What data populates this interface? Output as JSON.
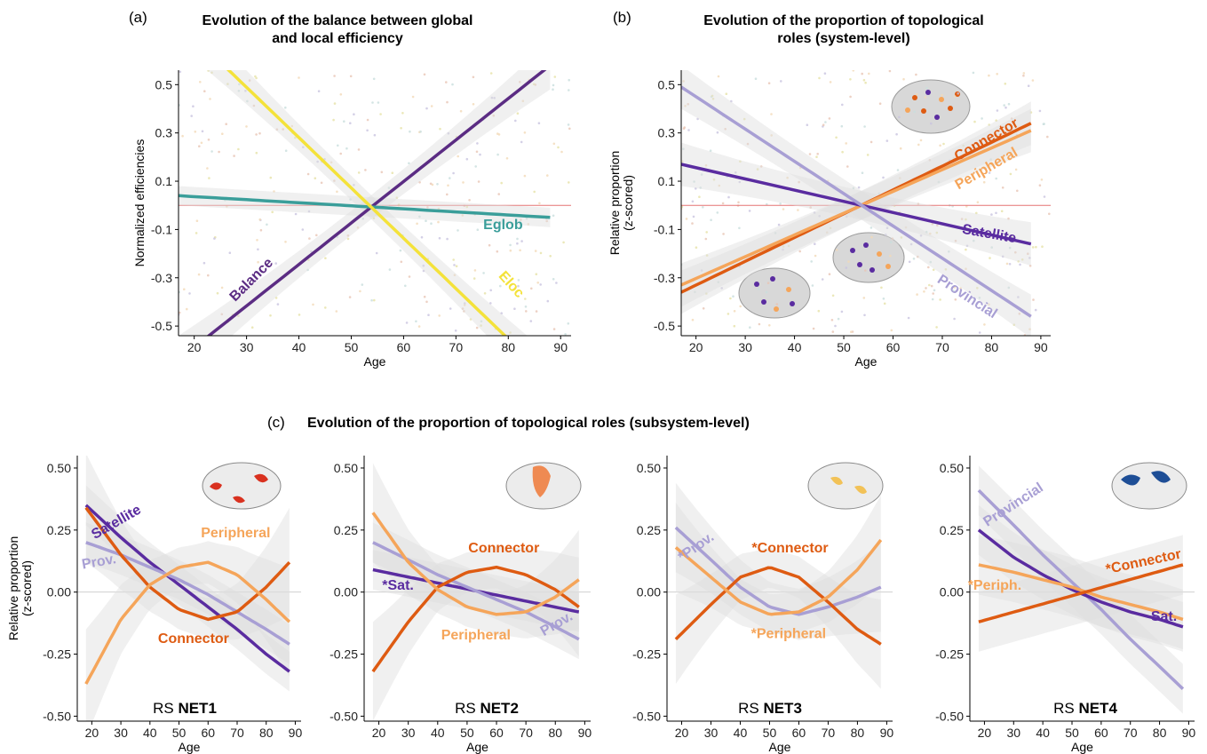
{
  "figure": {
    "panel_a_label": "(a)",
    "panel_b_label": "(b)",
    "panel_c_label": "(c)",
    "panel_c_title": "Evolution of the proportion of topological roles (subsystem-level)"
  },
  "colors": {
    "balance": "#5b2c83",
    "eglob": "#3a9e9a",
    "eloc": "#f4e23a",
    "connector": "#de5b12",
    "peripheral": "#f5a55a",
    "satellite": "#5a2ca0",
    "provincial": "#a89fd4",
    "zero_line": "#e57373",
    "band": "#dddddd"
  },
  "chart_data": [
    {
      "id": "a",
      "type": "line",
      "title": [
        "Evolution of the balance between global",
        "and local efficiency"
      ],
      "xlabel": "Age",
      "ylabel": "Normalized efficiencies",
      "xlim": [
        17,
        92
      ],
      "ylim": [
        -0.54,
        0.56
      ],
      "xticks": [
        20,
        30,
        40,
        50,
        60,
        70,
        80,
        90
      ],
      "yticks": [
        -0.5,
        -0.3,
        -0.1,
        0.1,
        0.3,
        0.5
      ],
      "ytick_labels": [
        "-0.5",
        "-0.3",
        "-0.1",
        "0.1",
        "0.3",
        "0.5"
      ],
      "reference_line": 0,
      "series": [
        {
          "name": "Balance",
          "color_key": "balance",
          "x": [
            17,
            88
          ],
          "y": [
            -0.64,
            0.58
          ],
          "band": [
            0.05,
            0.1
          ]
        },
        {
          "name": "Eglob",
          "color_key": "eglob",
          "x": [
            17,
            88
          ],
          "y": [
            0.04,
            -0.05
          ],
          "band": [
            0.04,
            0.04
          ]
        },
        {
          "name": "Eloc",
          "color_key": "eloc",
          "x": [
            17,
            88
          ],
          "y": [
            0.76,
            -0.72
          ],
          "band": [
            0.05,
            0.1
          ]
        }
      ],
      "annotations": [
        {
          "text": "Balance",
          "color_key": "balance",
          "x": 31,
          "y": -0.31,
          "angle": -45
        },
        {
          "text": "Eglob",
          "color_key": "eglob",
          "x": 79,
          "y": -0.083,
          "angle": 0
        },
        {
          "text": "Eloc",
          "color_key": "eloc",
          "x": 80.5,
          "y": -0.33,
          "angle": 48
        }
      ]
    },
    {
      "id": "b",
      "type": "line",
      "title": [
        "Evolution of the proportion of topological",
        "roles (system-level)"
      ],
      "xlabel": "Age",
      "ylabel": "Relative proportion",
      "ylabel2": "(z-scored)",
      "xlim": [
        17,
        92
      ],
      "ylim": [
        -0.54,
        0.56
      ],
      "xticks": [
        20,
        30,
        40,
        50,
        60,
        70,
        80,
        90
      ],
      "yticks": [
        -0.5,
        -0.3,
        -0.1,
        0.1,
        0.3,
        0.5
      ],
      "ytick_labels": [
        "-0.5",
        "-0.3",
        "-0.1",
        "0.1",
        "0.3",
        "0.5"
      ],
      "reference_line": 0,
      "series": [
        {
          "name": "Connector",
          "color_key": "connector",
          "x": [
            17,
            88
          ],
          "y": [
            -0.36,
            0.34
          ],
          "band": [
            0.06,
            0.09
          ]
        },
        {
          "name": "Peripheral",
          "color_key": "peripheral",
          "x": [
            17,
            88
          ],
          "y": [
            -0.33,
            0.31
          ],
          "band": [
            0.06,
            0.09
          ]
        },
        {
          "name": "Satellite",
          "color_key": "satellite",
          "x": [
            17,
            88
          ],
          "y": [
            0.17,
            -0.16
          ],
          "band": [
            0.06,
            0.09
          ]
        },
        {
          "name": "Provincial",
          "color_key": "provincial",
          "x": [
            17,
            88
          ],
          "y": [
            0.49,
            -0.46
          ],
          "band": [
            0.06,
            0.09
          ]
        }
      ],
      "annotations": [
        {
          "text": "Connector",
          "color_key": "connector",
          "x": 79,
          "y": 0.27,
          "angle": -30
        },
        {
          "text": "Peripheral",
          "color_key": "peripheral",
          "x": 79,
          "y": 0.15,
          "angle": -30
        },
        {
          "text": "Satellite",
          "color_key": "satellite",
          "x": 79.5,
          "y": -0.12,
          "angle": 10
        },
        {
          "text": "Provincial",
          "color_key": "provincial",
          "x": 75,
          "y": -0.38,
          "angle": 33
        }
      ]
    },
    {
      "id": "c1",
      "type": "line",
      "subtitle_prefix": "RS ",
      "subtitle_bold": "NET1",
      "xlabel": "Age",
      "ylabel": "Relative proportion",
      "ylabel2": "(z-scored)",
      "xlim": [
        15,
        92
      ],
      "ylim": [
        -0.52,
        0.55
      ],
      "xticks": [
        20,
        30,
        40,
        50,
        60,
        70,
        80,
        90
      ],
      "yticks": [
        -0.5,
        -0.25,
        0,
        0.25,
        0.5
      ],
      "ytick_labels": [
        "-0.50",
        "-0.25",
        "0.00",
        "0.25",
        "0.50"
      ],
      "series": [
        {
          "name": "Satellite",
          "color_key": "satellite",
          "x": [
            18,
            30,
            40,
            50,
            60,
            70,
            80,
            88
          ],
          "y": [
            0.35,
            0.22,
            0.12,
            0.03,
            -0.06,
            -0.15,
            -0.25,
            -0.32
          ],
          "band": [
            0.08,
            0.08
          ]
        },
        {
          "name": "Prov.",
          "color_key": "provincial",
          "x": [
            18,
            30,
            40,
            50,
            60,
            70,
            80,
            88
          ],
          "y": [
            0.2,
            0.15,
            0.1,
            0.05,
            -0.01,
            -0.08,
            -0.15,
            -0.21
          ],
          "band": [
            0.08,
            0.08
          ]
        },
        {
          "name": "Connector",
          "color_key": "connector",
          "x": [
            18,
            30,
            40,
            50,
            60,
            70,
            80,
            88
          ],
          "y": [
            0.34,
            0.15,
            0.02,
            -0.07,
            -0.11,
            -0.08,
            0.02,
            0.12
          ],
          "band": [
            0.08,
            0.22
          ]
        },
        {
          "name": "Peripheral",
          "color_key": "peripheral",
          "x": [
            18,
            30,
            40,
            50,
            60,
            70,
            80,
            88
          ],
          "y": [
            -0.37,
            -0.11,
            0.03,
            0.1,
            0.12,
            0.07,
            -0.03,
            -0.12
          ],
          "band": [
            0.08,
            0.22
          ]
        }
      ],
      "annotations": [
        {
          "text": "Satellite",
          "color_key": "satellite",
          "x": 28.5,
          "y": 0.28,
          "angle": -30
        },
        {
          "text": "Prov.",
          "color_key": "provincial",
          "x": 22.5,
          "y": 0.12,
          "angle": -10
        },
        {
          "text": "Peripheral",
          "color_key": "peripheral",
          "x": 69.5,
          "y": 0.235,
          "angle": 0
        },
        {
          "text": "Connector",
          "color_key": "connector",
          "x": 55,
          "y": -0.19,
          "angle": 0
        }
      ]
    },
    {
      "id": "c2",
      "type": "line",
      "subtitle_prefix": "RS ",
      "subtitle_bold": "NET2",
      "xlabel": "Age",
      "xlim": [
        15,
        92
      ],
      "ylim": [
        -0.52,
        0.55
      ],
      "xticks": [
        20,
        30,
        40,
        50,
        60,
        70,
        80,
        90
      ],
      "yticks": [
        -0.5,
        -0.25,
        0,
        0.25,
        0.5
      ],
      "ytick_labels": [
        "-0.50",
        "-0.25",
        "0.00",
        "0.25",
        "0.50"
      ],
      "series": [
        {
          "name": "*Sat.",
          "color_key": "satellite",
          "x": [
            18,
            88
          ],
          "y": [
            0.09,
            -0.08
          ],
          "band": [
            0.08,
            0.08
          ]
        },
        {
          "name": "Prov.",
          "color_key": "provincial",
          "x": [
            18,
            30,
            40,
            50,
            60,
            70,
            80,
            88
          ],
          "y": [
            0.2,
            0.13,
            0.07,
            0.02,
            -0.03,
            -0.08,
            -0.14,
            -0.19
          ],
          "band": [
            0.08,
            0.08
          ]
        },
        {
          "name": "Connector",
          "color_key": "connector",
          "x": [
            18,
            30,
            40,
            50,
            60,
            70,
            80,
            88
          ],
          "y": [
            -0.32,
            -0.12,
            0.02,
            0.08,
            0.1,
            0.07,
            0.01,
            -0.06
          ],
          "band": [
            0.08,
            0.2
          ]
        },
        {
          "name": "Peripheral",
          "color_key": "peripheral",
          "x": [
            18,
            30,
            40,
            50,
            60,
            70,
            80,
            88
          ],
          "y": [
            0.32,
            0.12,
            0.01,
            -0.06,
            -0.09,
            -0.08,
            -0.02,
            0.05
          ],
          "band": [
            0.08,
            0.2
          ]
        }
      ],
      "annotations": [
        {
          "text": "*Sat.",
          "color_key": "satellite",
          "x": 26.5,
          "y": 0.025,
          "angle": 0
        },
        {
          "text": "Connector",
          "color_key": "connector",
          "x": 62.5,
          "y": 0.175,
          "angle": 0
        },
        {
          "text": "Peripheral",
          "color_key": "peripheral",
          "x": 53,
          "y": -0.175,
          "angle": 0
        },
        {
          "text": "Prov.",
          "color_key": "provincial",
          "x": 80.5,
          "y": -0.13,
          "angle": -30
        }
      ]
    },
    {
      "id": "c3",
      "type": "line",
      "subtitle_prefix": "RS ",
      "subtitle_bold": "NET3",
      "xlabel": "Age",
      "xlim": [
        15,
        92
      ],
      "ylim": [
        -0.52,
        0.55
      ],
      "xticks": [
        20,
        30,
        40,
        50,
        60,
        70,
        80,
        90
      ],
      "yticks": [
        -0.5,
        -0.25,
        0,
        0.25,
        0.5
      ],
      "ytick_labels": [
        "-0.50",
        "-0.25",
        "0.00",
        "0.25",
        "0.50"
      ],
      "series": [
        {
          "name": "*Prov.",
          "color_key": "provincial",
          "x": [
            18,
            30,
            40,
            50,
            60,
            70,
            80,
            88
          ],
          "y": [
            0.26,
            0.13,
            0.02,
            -0.06,
            -0.09,
            -0.06,
            -0.02,
            0.02
          ],
          "band": [
            0.1,
            0.18
          ]
        },
        {
          "name": "*Connector",
          "color_key": "connector",
          "x": [
            18,
            30,
            40,
            50,
            60,
            70,
            80,
            88
          ],
          "y": [
            -0.19,
            -0.05,
            0.06,
            0.1,
            0.06,
            -0.04,
            -0.15,
            -0.21
          ],
          "band": [
            0.08,
            0.18
          ]
        },
        {
          "name": "*Peripheral",
          "color_key": "peripheral",
          "x": [
            18,
            30,
            40,
            50,
            60,
            70,
            80,
            88
          ],
          "y": [
            0.18,
            0.06,
            -0.04,
            -0.09,
            -0.08,
            -0.02,
            0.09,
            0.21
          ],
          "band": [
            0.08,
            0.18
          ]
        }
      ],
      "annotations": [
        {
          "text": "*Prov.",
          "color_key": "provincial",
          "x": 25,
          "y": 0.18,
          "angle": -35
        },
        {
          "text": "*Connector",
          "color_key": "connector",
          "x": 57,
          "y": 0.175,
          "angle": 0
        },
        {
          "text": "*Peripheral",
          "color_key": "peripheral",
          "x": 56.5,
          "y": -0.17,
          "angle": 0
        }
      ]
    },
    {
      "id": "c4",
      "type": "line",
      "subtitle_prefix": "RS ",
      "subtitle_bold": "NET4",
      "xlabel": "Age",
      "xlim": [
        15,
        92
      ],
      "ylim": [
        -0.52,
        0.55
      ],
      "xticks": [
        20,
        30,
        40,
        50,
        60,
        70,
        80,
        90
      ],
      "yticks": [
        -0.5,
        -0.25,
        0,
        0.25,
        0.5
      ],
      "ytick_labels": [
        "-0.50",
        "-0.25",
        "0.00",
        "0.25",
        "0.50"
      ],
      "series": [
        {
          "name": "Provincial",
          "color_key": "provincial",
          "x": [
            18,
            30,
            40,
            50,
            60,
            70,
            80,
            88
          ],
          "y": [
            0.41,
            0.27,
            0.15,
            0.04,
            -0.07,
            -0.19,
            -0.3,
            -0.39
          ],
          "band": [
            0.1,
            0.1
          ]
        },
        {
          "name": "Sat.",
          "color_key": "satellite",
          "x": [
            18,
            30,
            40,
            50,
            60,
            70,
            80,
            88
          ],
          "y": [
            0.25,
            0.14,
            0.07,
            0.01,
            -0.04,
            -0.08,
            -0.11,
            -0.14
          ],
          "band": [
            0.1,
            0.1
          ]
        },
        {
          "name": "*Periph.",
          "color_key": "peripheral",
          "x": [
            18,
            30,
            40,
            50,
            60,
            70,
            80,
            88
          ],
          "y": [
            0.11,
            0.08,
            0.05,
            0.02,
            -0.02,
            -0.05,
            -0.08,
            -0.11
          ],
          "band": [
            0.12,
            0.12
          ]
        },
        {
          "name": "*Connector",
          "color_key": "connector",
          "x": [
            18,
            88
          ],
          "y": [
            -0.12,
            0.11
          ],
          "band": [
            0.12,
            0.12
          ]
        }
      ],
      "annotations": [
        {
          "text": "Provincial",
          "color_key": "provincial",
          "x": 30,
          "y": 0.35,
          "angle": -33
        },
        {
          "text": "*Periph.",
          "color_key": "peripheral",
          "x": 23.5,
          "y": 0.025,
          "angle": 0
        },
        {
          "text": "*Connector",
          "color_key": "connector",
          "x": 74.5,
          "y": 0.12,
          "angle": -12
        },
        {
          "text": "Sat.",
          "color_key": "satellite",
          "x": 81.5,
          "y": -0.1,
          "angle": 0
        }
      ]
    }
  ]
}
